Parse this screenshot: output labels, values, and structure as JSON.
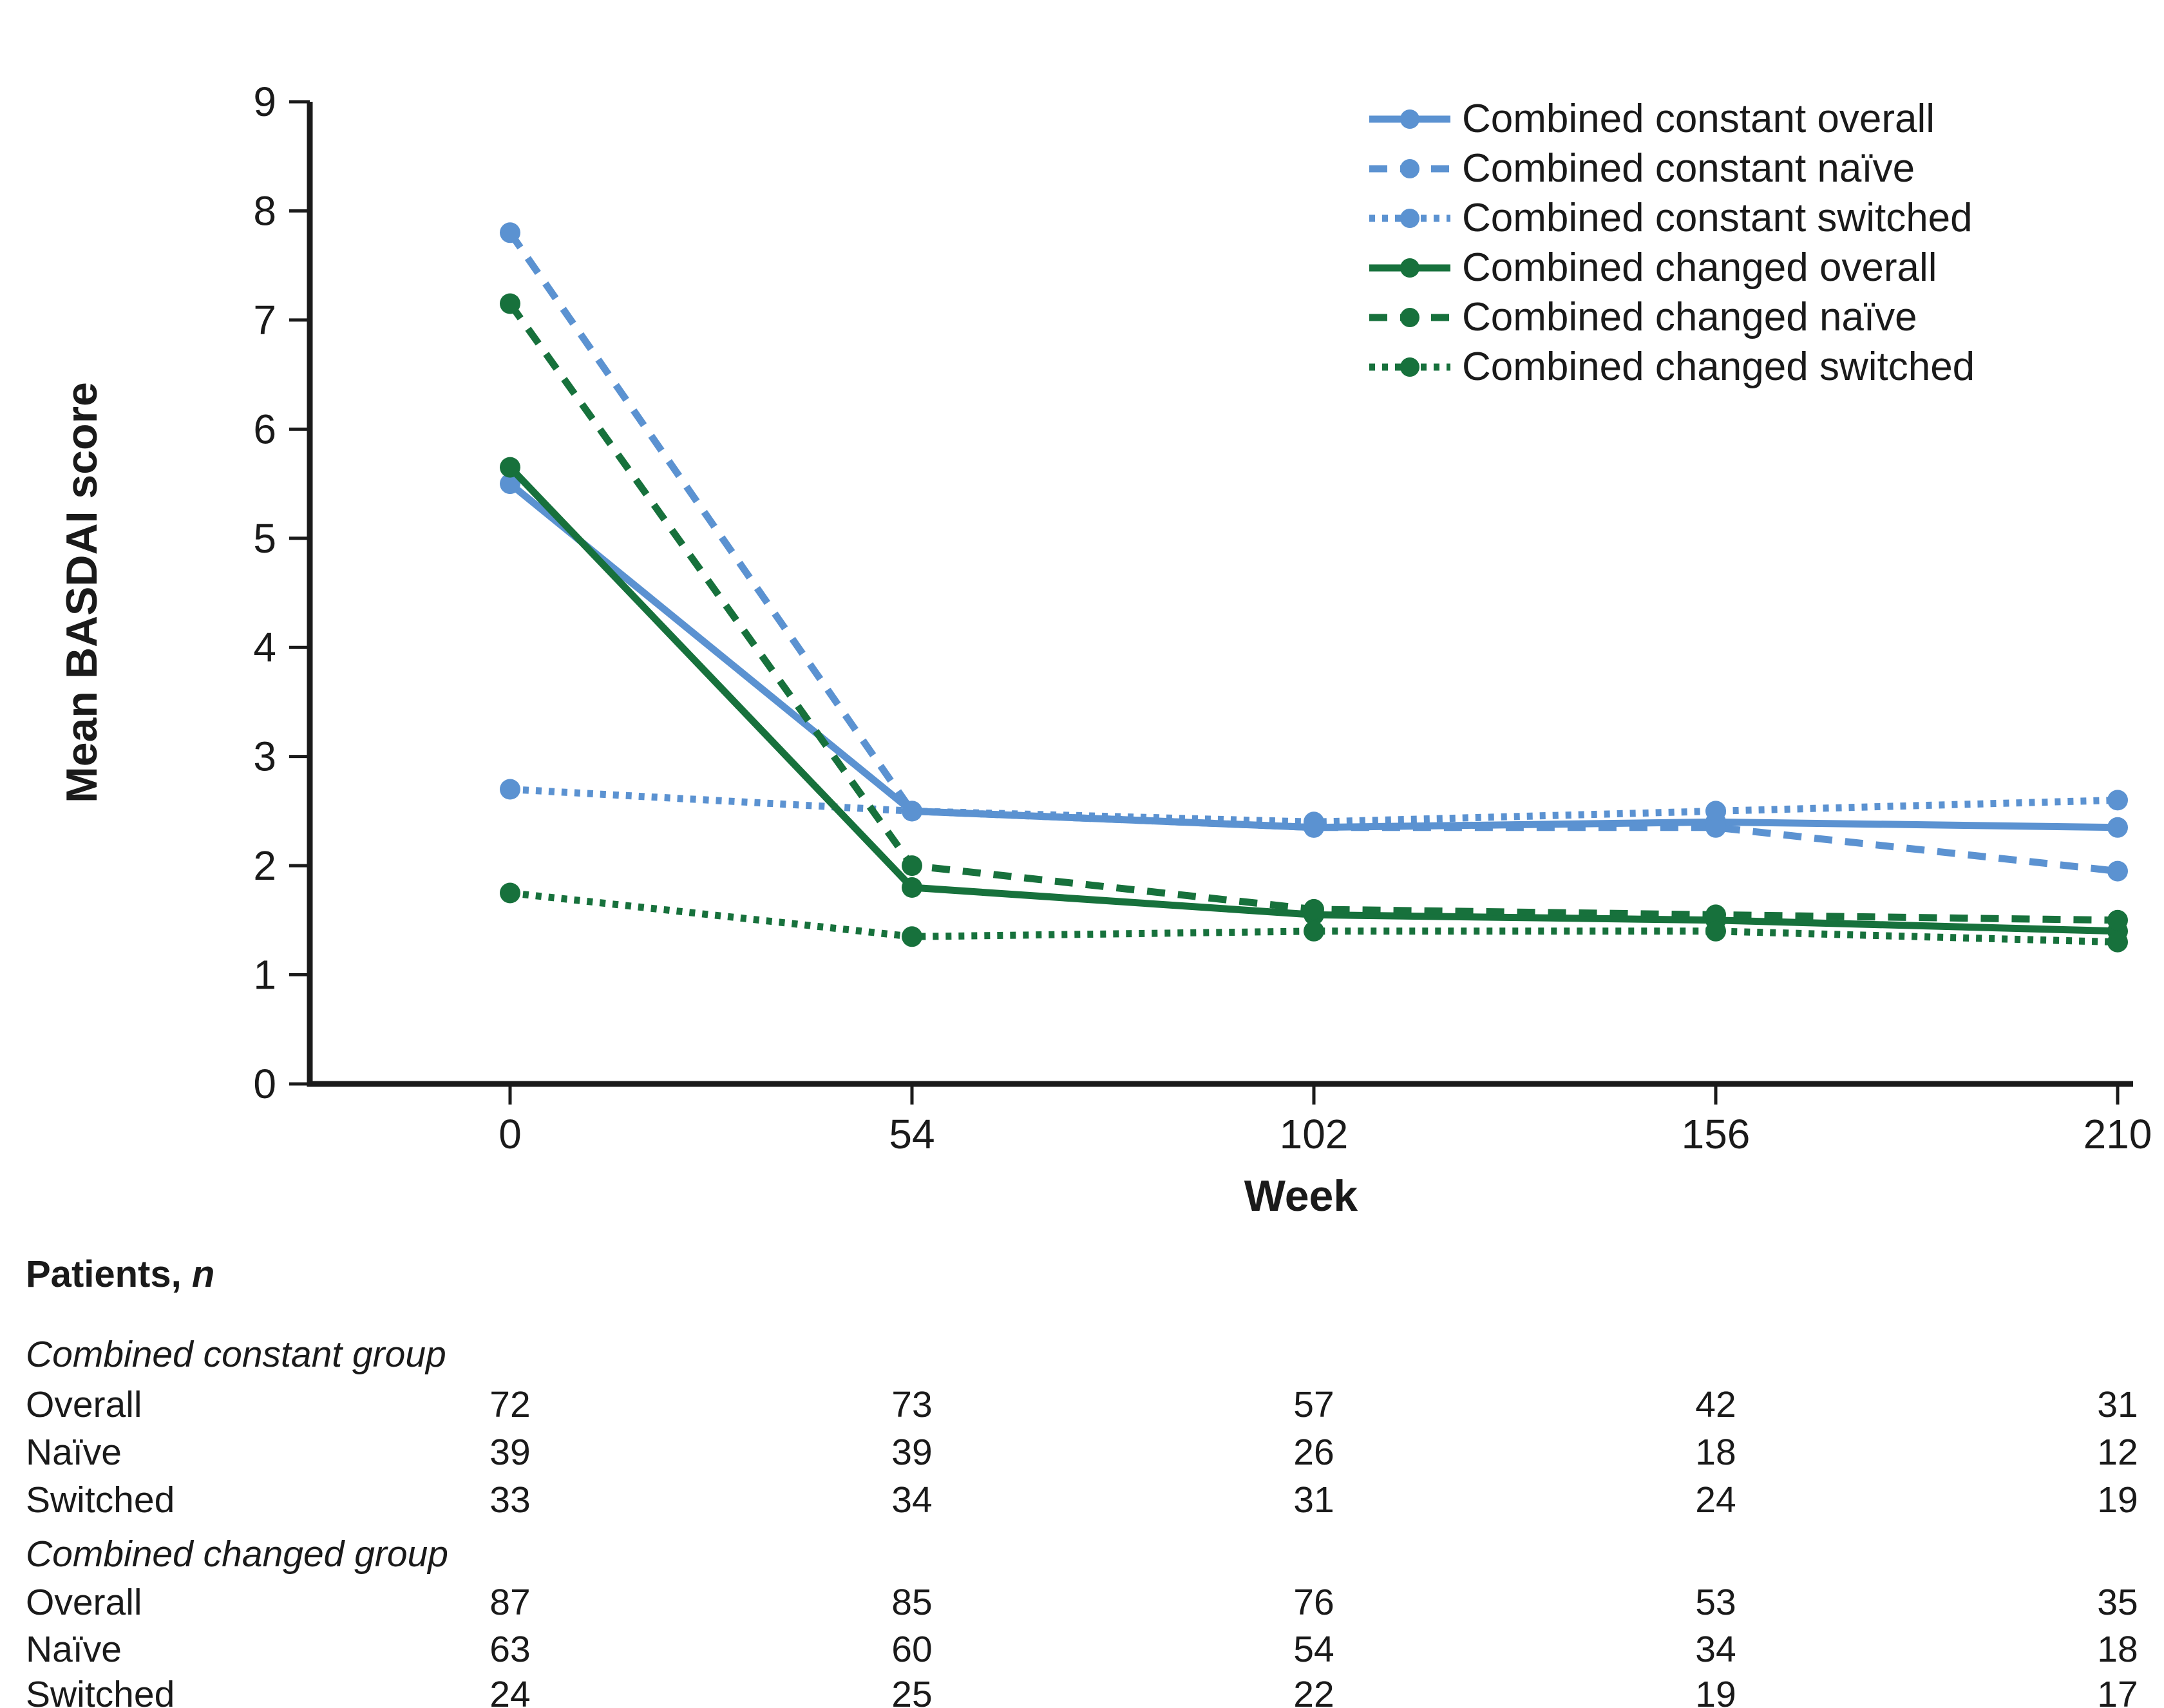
{
  "colors": {
    "blue": "#5b92d1",
    "green": "#17713c",
    "axis": "#1a1a1a",
    "text": "#1a1a1a"
  },
  "chart_data": {
    "type": "line",
    "title": "",
    "xlabel": "Week",
    "ylabel": "Mean BASDAI score",
    "x": [
      0,
      54,
      102,
      156,
      210
    ],
    "ylim": [
      0,
      9
    ],
    "yticks": [
      0,
      1,
      2,
      3,
      4,
      5,
      6,
      7,
      8,
      9
    ],
    "grid": false,
    "legend_position": "top-right",
    "series": [
      {
        "name": "Combined constant overall",
        "color_key": "blue",
        "style": "solid",
        "values": [
          5.5,
          2.5,
          2.35,
          2.4,
          2.35
        ]
      },
      {
        "name": "Combined constant naïve",
        "color_key": "blue",
        "style": "dashed",
        "values": [
          7.8,
          2.5,
          2.35,
          2.35,
          1.95
        ]
      },
      {
        "name": "Combined constant switched",
        "color_key": "blue",
        "style": "dotted",
        "values": [
          2.7,
          2.5,
          2.4,
          2.5,
          2.6
        ]
      },
      {
        "name": "Combined changed overall",
        "color_key": "green",
        "style": "solid",
        "values": [
          5.65,
          1.8,
          1.55,
          1.5,
          1.4
        ]
      },
      {
        "name": "Combined changed naïve",
        "color_key": "green",
        "style": "dashed",
        "values": [
          7.15,
          2.0,
          1.6,
          1.55,
          1.5
        ]
      },
      {
        "name": "Combined changed switched",
        "color_key": "green",
        "style": "dotted",
        "values": [
          1.75,
          1.35,
          1.4,
          1.4,
          1.3
        ]
      }
    ]
  },
  "table": {
    "title": "Patients,",
    "title_n": "n",
    "groups": [
      {
        "label": "Combined constant group",
        "rows": [
          {
            "label": "Overall",
            "values": [
              "72",
              "73",
              "57",
              "42",
              "31"
            ]
          },
          {
            "label": "Naïve",
            "values": [
              "39",
              "39",
              "26",
              "18",
              "12"
            ]
          },
          {
            "label": "Switched",
            "values": [
              "33",
              "34",
              "31",
              "24",
              "19"
            ]
          }
        ]
      },
      {
        "label": "Combined changed group",
        "rows": [
          {
            "label": "Overall",
            "values": [
              "87",
              "85",
              "76",
              "53",
              "35"
            ]
          },
          {
            "label": "Naïve",
            "values": [
              "63",
              "60",
              "54",
              "34",
              "18"
            ]
          },
          {
            "label": "Switched",
            "values": [
              "24",
              "25",
              "22",
              "19",
              "17"
            ]
          }
        ]
      }
    ]
  }
}
